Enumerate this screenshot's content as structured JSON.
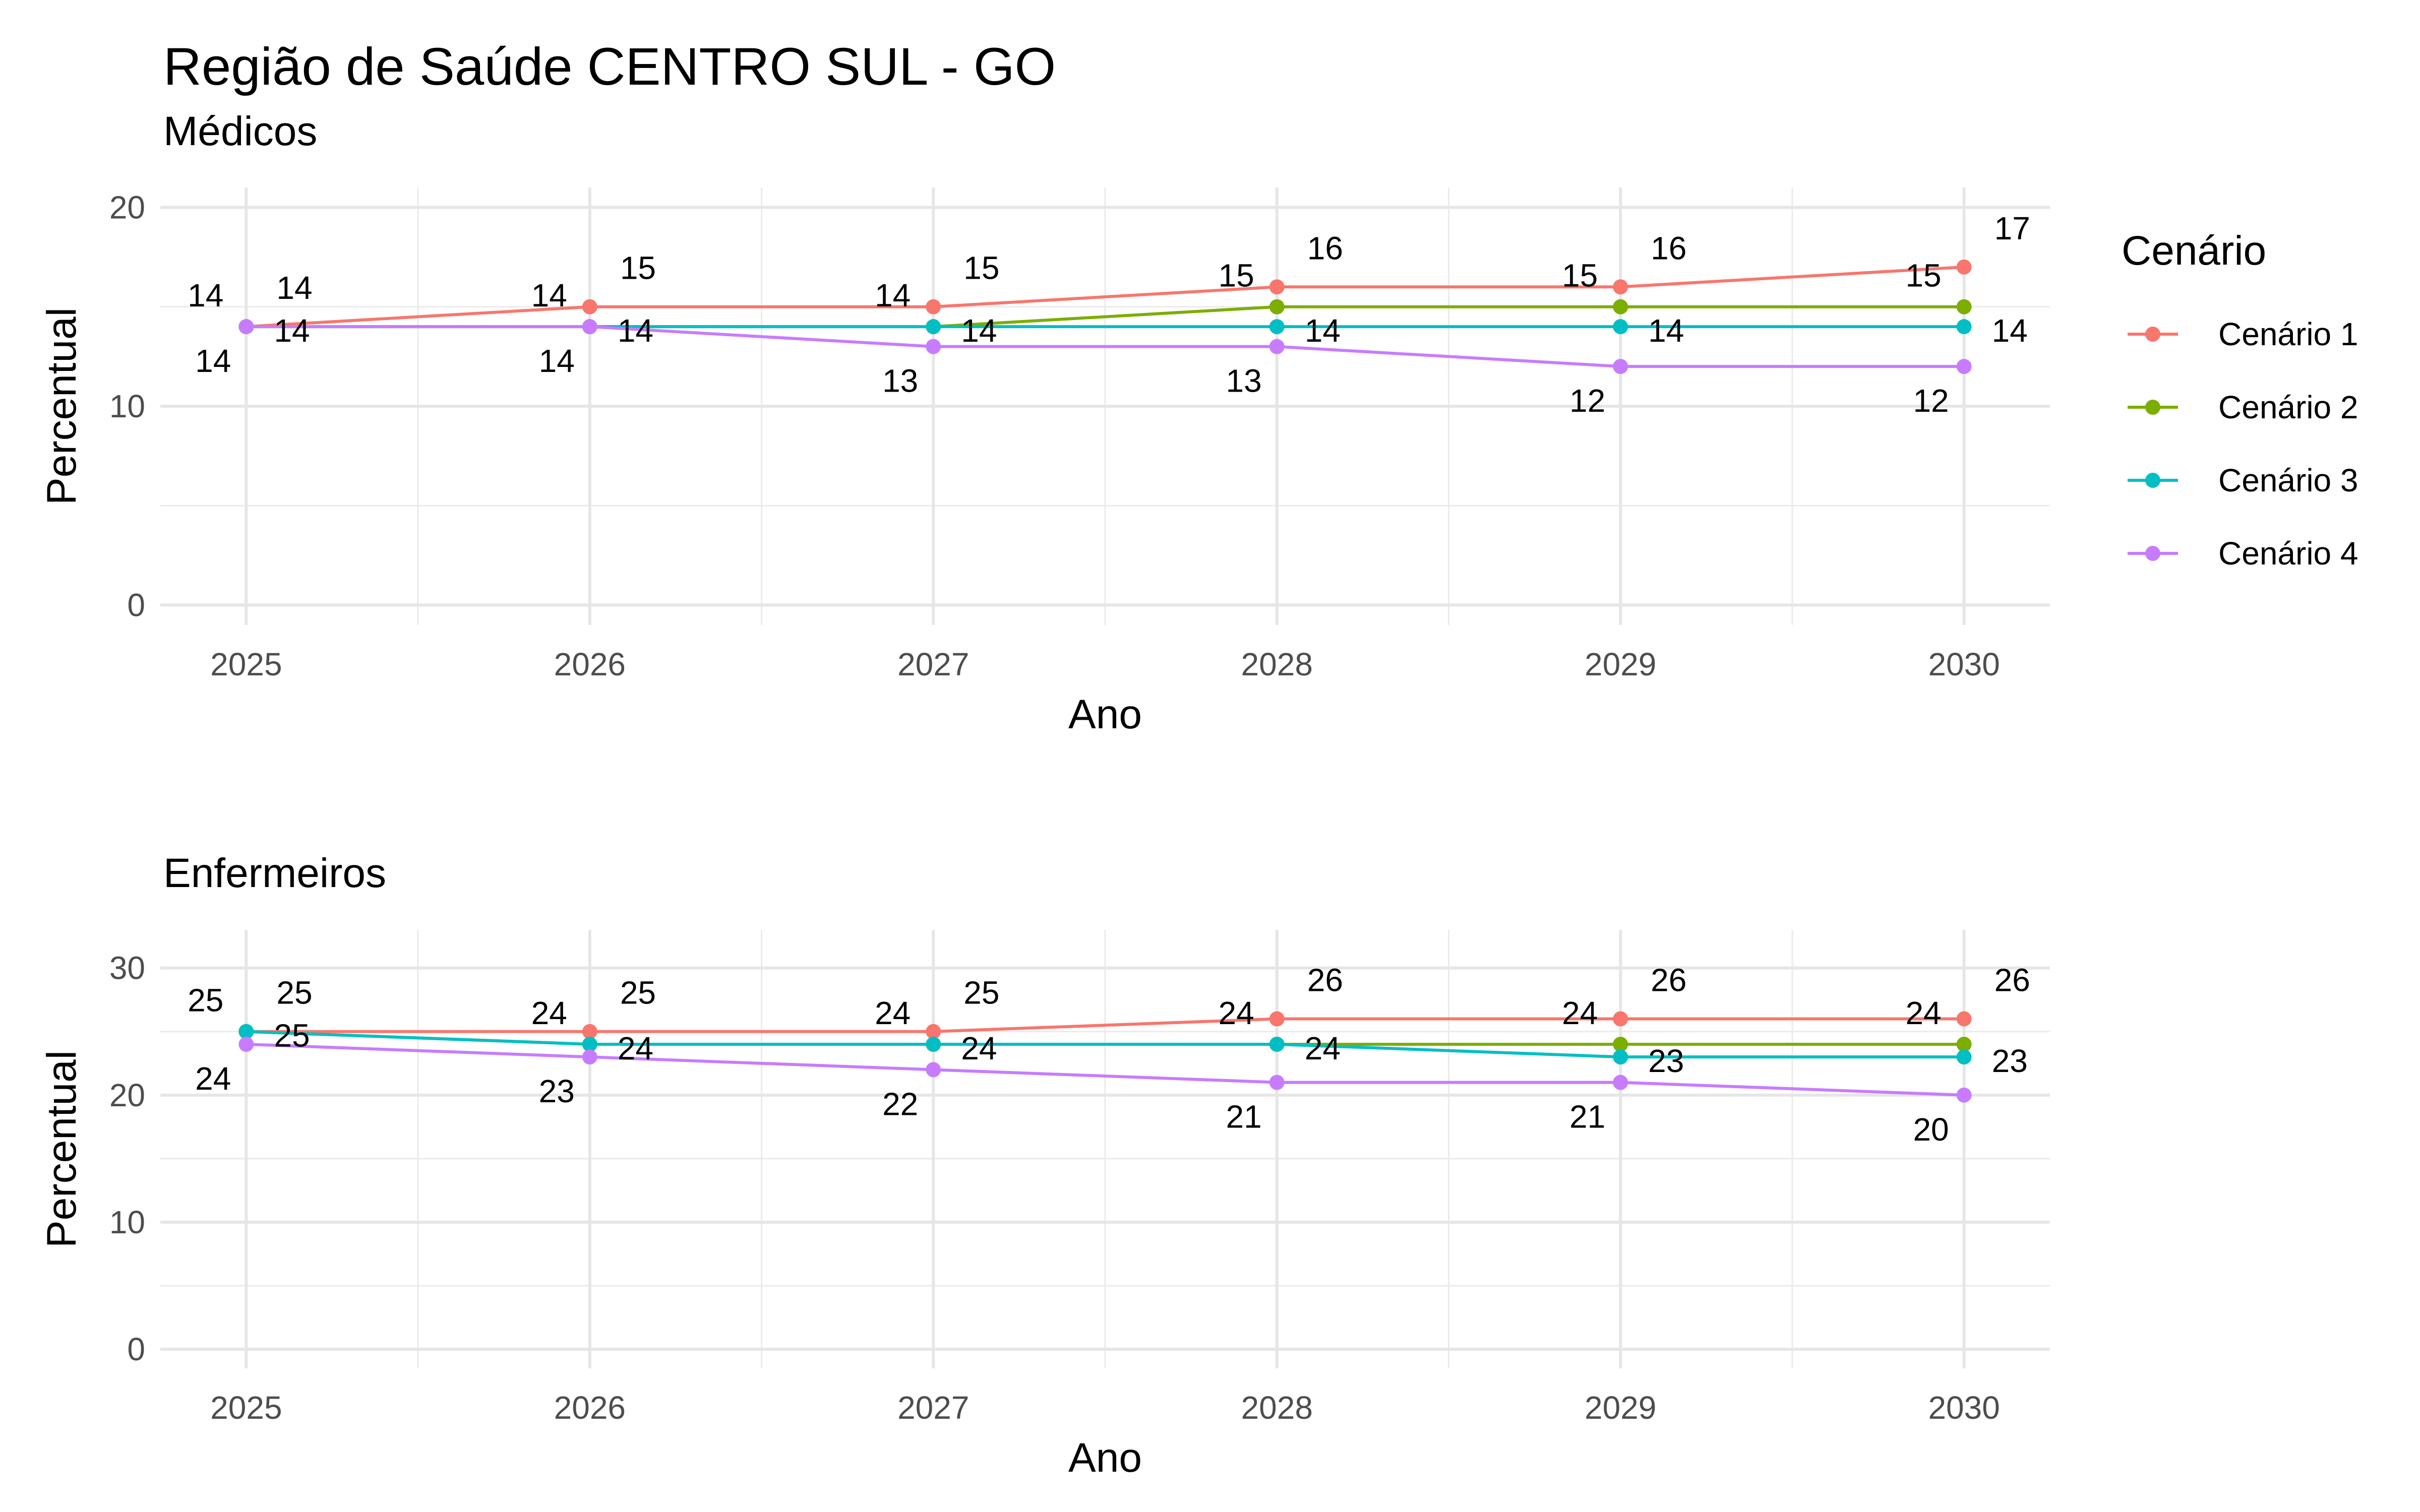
{
  "title": "Região de Saúde CENTRO SUL - GO",
  "legend": {
    "title": "Cenário",
    "entries": [
      {
        "name": "Cenário 1",
        "color": "#F8766D"
      },
      {
        "name": "Cenário 2",
        "color": "#7CAE00"
      },
      {
        "name": "Cenário 3",
        "color": "#00BFC4"
      },
      {
        "name": "Cenário 4",
        "color": "#C77CFF"
      }
    ],
    "placement": "right"
  },
  "chart_data": [
    {
      "type": "line",
      "subtitle": "Médicos",
      "xlabel": "Ano",
      "ylabel": "Percentual",
      "x": [
        2025,
        2026,
        2027,
        2028,
        2029,
        2030
      ],
      "xlim": [
        2024.75,
        2030.25
      ],
      "ylim": [
        -1,
        21
      ],
      "yticks": [
        0,
        10,
        20
      ],
      "grid": true,
      "series": [
        {
          "name": "Cenário 1",
          "color": "#F8766D",
          "values": [
            14,
            15,
            15,
            16,
            16,
            17
          ]
        },
        {
          "name": "Cenário 2",
          "color": "#7CAE00",
          "values": [
            14,
            14,
            14,
            15,
            15,
            15
          ]
        },
        {
          "name": "Cenário 3",
          "color": "#00BFC4",
          "values": [
            14,
            14,
            14,
            14,
            14,
            14
          ]
        },
        {
          "name": "Cenário 4",
          "color": "#C77CFF",
          "values": [
            14,
            14,
            13,
            13,
            12,
            12
          ]
        }
      ]
    },
    {
      "type": "line",
      "subtitle": "Enfermeiros",
      "xlabel": "Ano",
      "ylabel": "Percentual",
      "x": [
        2025,
        2026,
        2027,
        2028,
        2029,
        2030
      ],
      "xlim": [
        2024.75,
        2030.25
      ],
      "ylim": [
        -1.5,
        33
      ],
      "yticks": [
        0,
        10,
        20,
        30
      ],
      "grid": true,
      "series": [
        {
          "name": "Cenário 1",
          "color": "#F8766D",
          "values": [
            25,
            25,
            25,
            26,
            26,
            26
          ]
        },
        {
          "name": "Cenário 2",
          "color": "#7CAE00",
          "values": [
            25,
            24,
            24,
            24,
            24,
            24
          ]
        },
        {
          "name": "Cenário 3",
          "color": "#00BFC4",
          "values": [
            25,
            24,
            24,
            24,
            23,
            23
          ]
        },
        {
          "name": "Cenário 4",
          "color": "#C77CFF",
          "values": [
            24,
            23,
            22,
            21,
            21,
            20
          ]
        }
      ]
    }
  ]
}
